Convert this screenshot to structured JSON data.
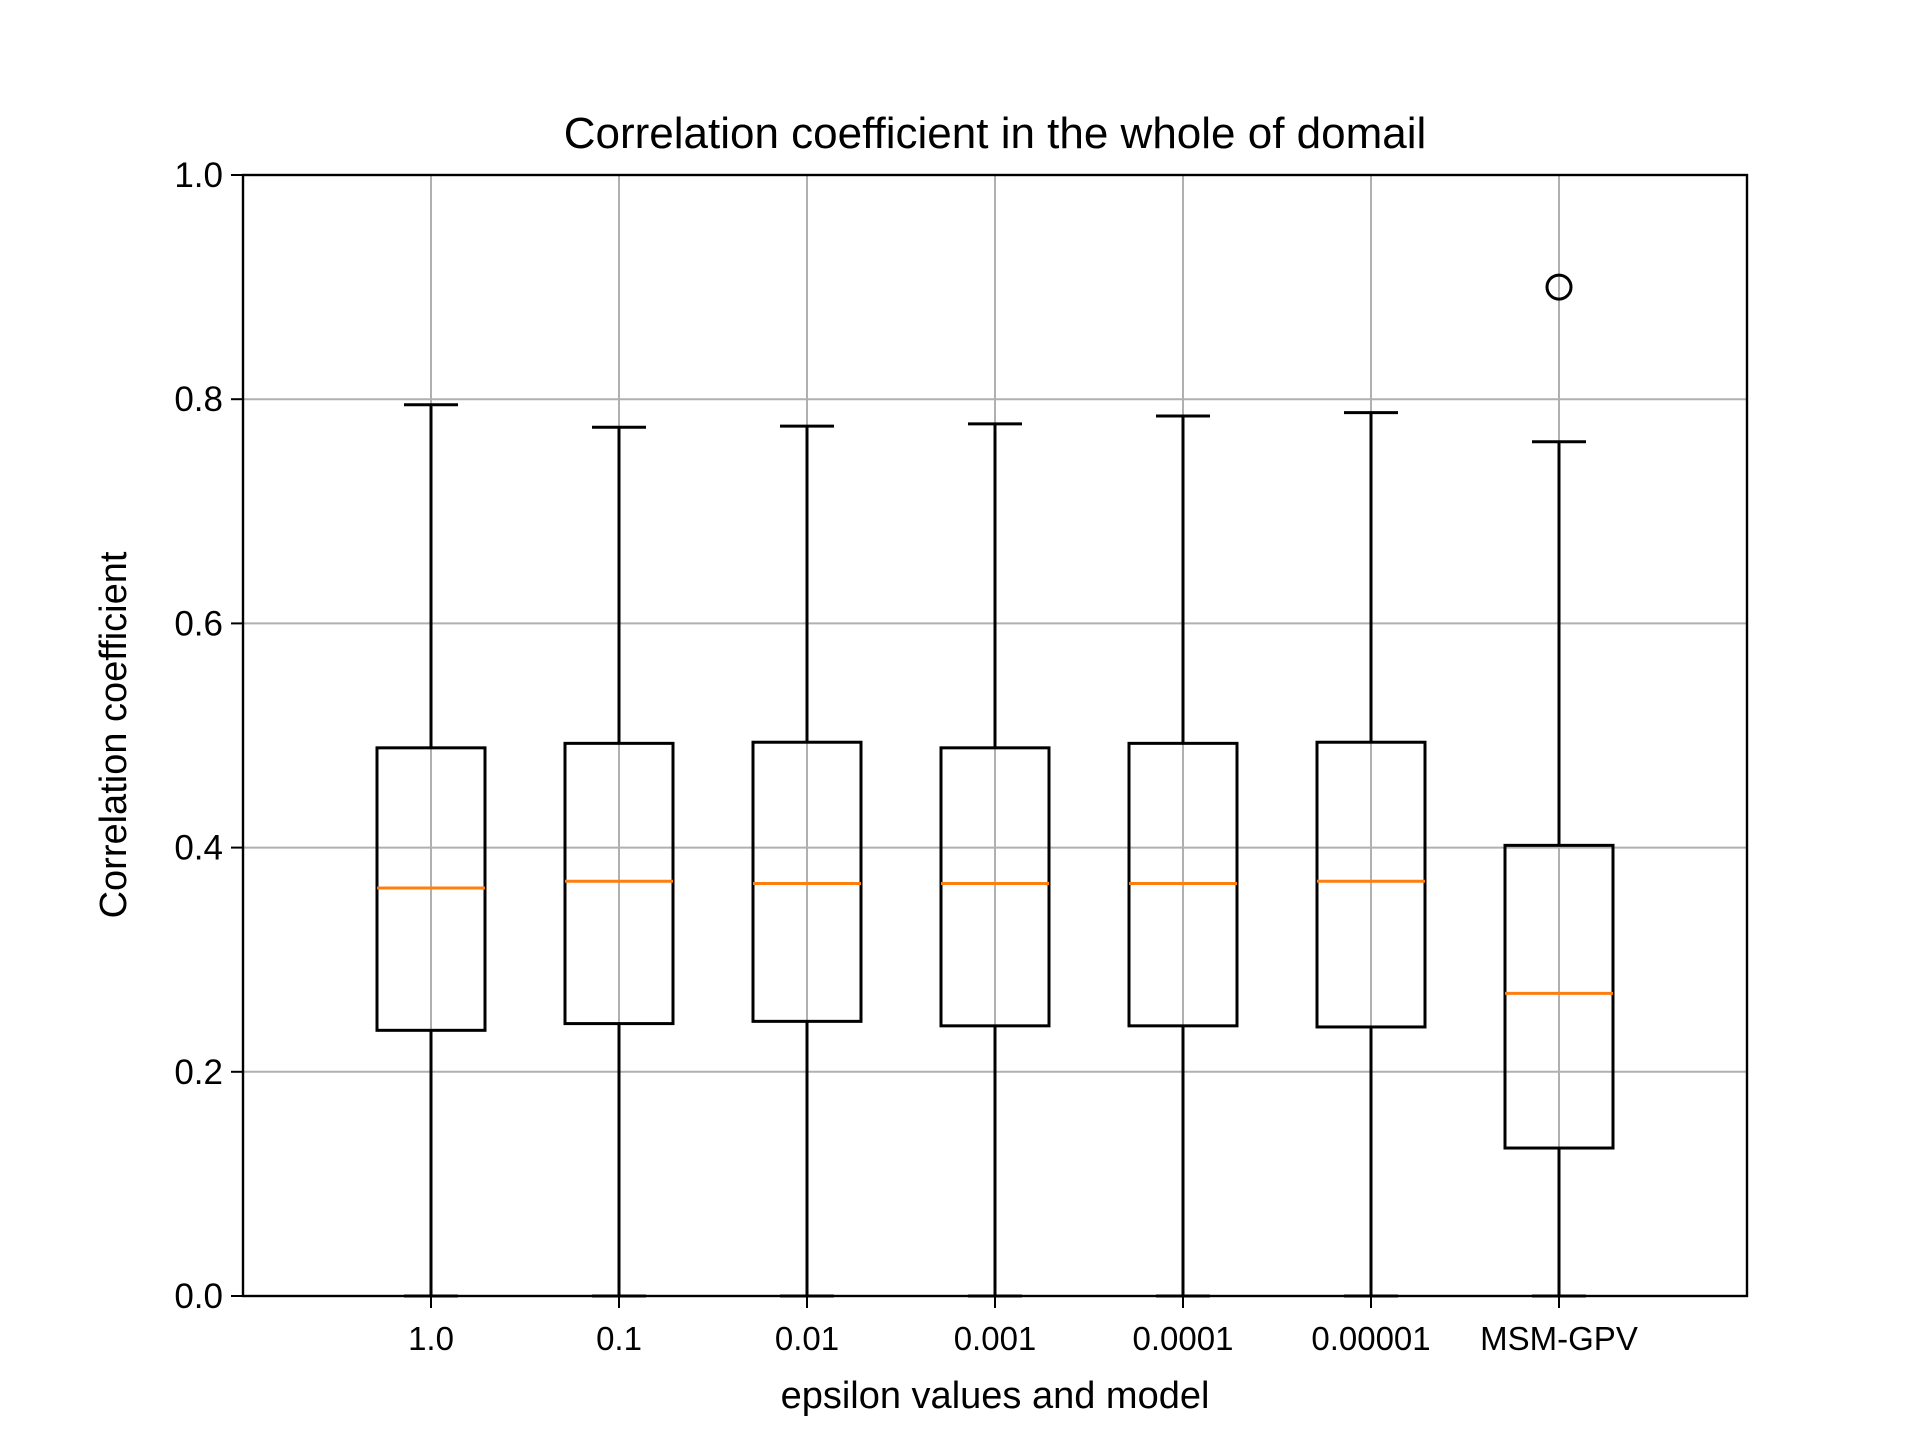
{
  "chart_data": {
    "type": "box",
    "title": "Correlation coefficient in the whole of domail",
    "xlabel": "epsilon values and model",
    "ylabel": "Correlation coefficient",
    "ylim": [
      0.0,
      1.0
    ],
    "yticks": [
      "0.0",
      "0.2",
      "0.4",
      "0.6",
      "0.8",
      "1.0"
    ],
    "grid": true,
    "categories": [
      "1.0",
      "0.1",
      "0.01",
      "0.001",
      "0.0001",
      "0.00001",
      "MSM-GPV"
    ],
    "boxes": [
      {
        "min": 0.0,
        "q1": 0.237,
        "median": 0.364,
        "q3": 0.489,
        "max": 0.795,
        "outliers": []
      },
      {
        "min": 0.0,
        "q1": 0.243,
        "median": 0.37,
        "q3": 0.493,
        "max": 0.775,
        "outliers": []
      },
      {
        "min": 0.0,
        "q1": 0.245,
        "median": 0.368,
        "q3": 0.494,
        "max": 0.776,
        "outliers": []
      },
      {
        "min": 0.0,
        "q1": 0.241,
        "median": 0.368,
        "q3": 0.489,
        "max": 0.778,
        "outliers": []
      },
      {
        "min": 0.0,
        "q1": 0.241,
        "median": 0.368,
        "q3": 0.493,
        "max": 0.785,
        "outliers": []
      },
      {
        "min": 0.0,
        "q1": 0.24,
        "median": 0.37,
        "q3": 0.494,
        "max": 0.788,
        "outliers": []
      },
      {
        "min": 0.0,
        "q1": 0.132,
        "median": 0.27,
        "q3": 0.402,
        "max": 0.762,
        "outliers": [
          0.9
        ]
      }
    ],
    "colors": {
      "box": "#000000",
      "median": "#ff7f0e",
      "grid": "#b0b0b0"
    }
  }
}
